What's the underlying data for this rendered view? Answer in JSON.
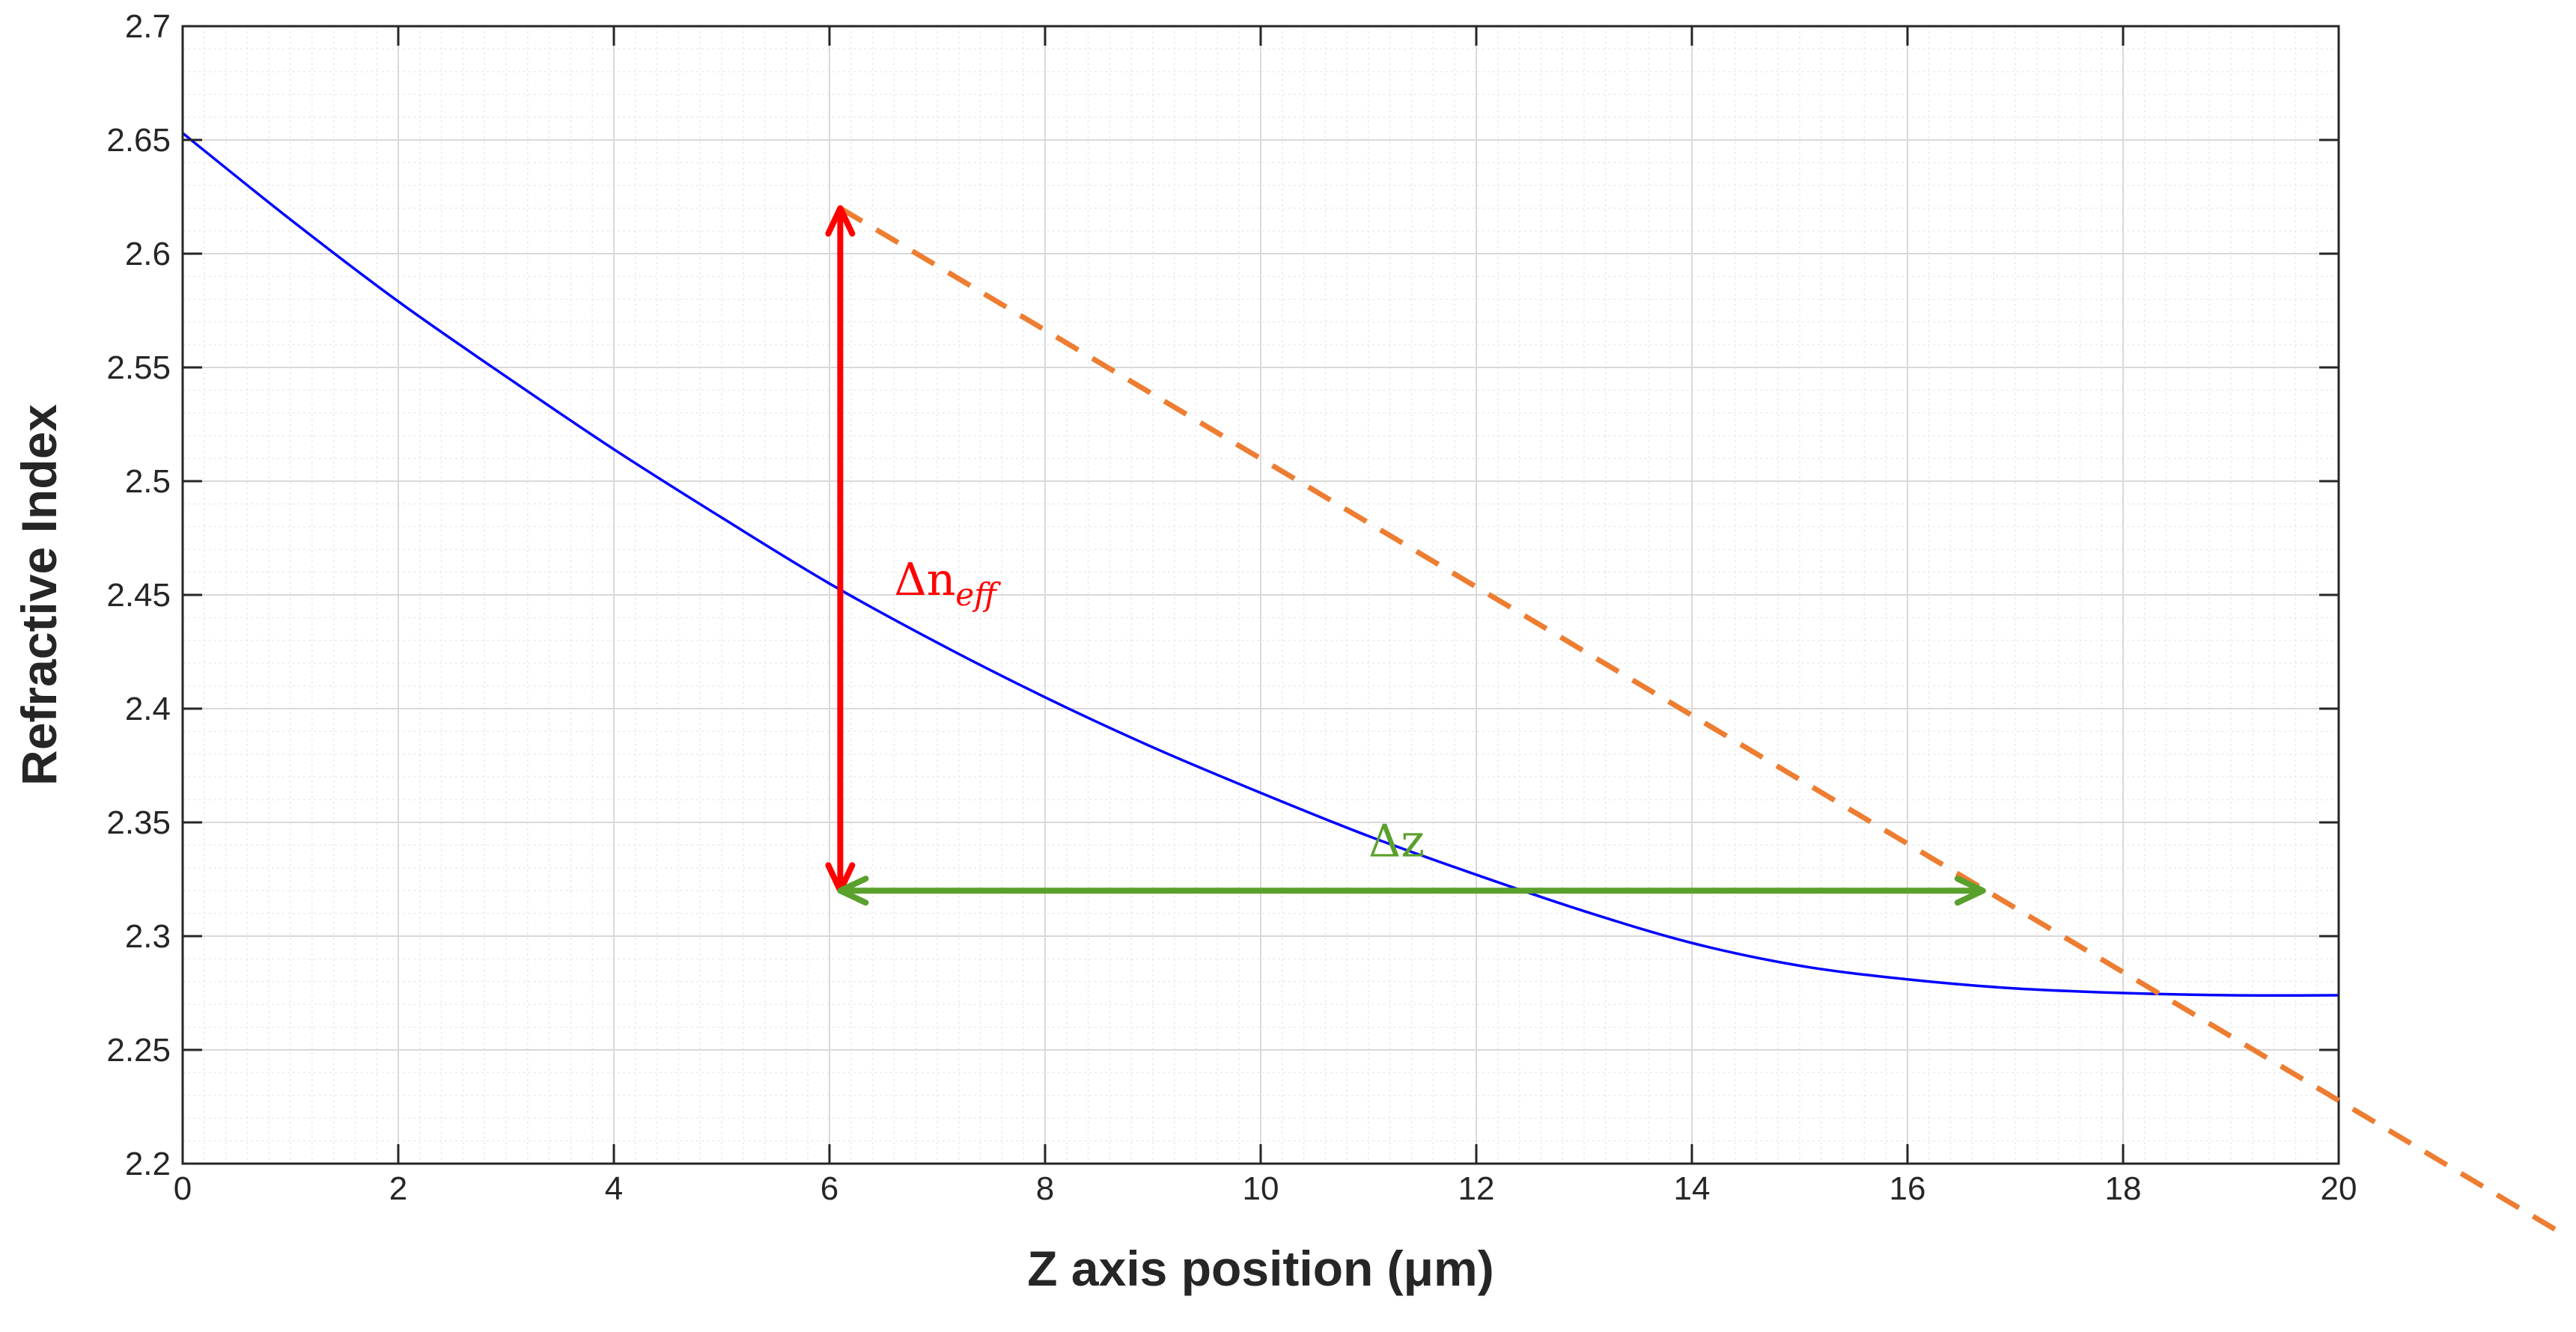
{
  "chart_data": {
    "type": "line",
    "title": "",
    "xlabel": "Z axis position (μm)",
    "ylabel": "Refractive Index",
    "xlim": [
      0,
      20
    ],
    "ylim": [
      2.2,
      2.7
    ],
    "xticks": [
      "0",
      "2",
      "4",
      "6",
      "8",
      "10",
      "12",
      "14",
      "16",
      "18",
      "20"
    ],
    "yticks": [
      "2.2",
      "2.25",
      "2.3",
      "2.35",
      "2.4",
      "2.45",
      "2.5",
      "2.55",
      "2.6",
      "2.65",
      "2.7"
    ],
    "grid": true,
    "minor_grid": true,
    "series": [
      {
        "color": "#0000ff",
        "x": [
          0,
          1,
          2,
          3,
          4,
          5,
          6,
          7,
          8,
          9,
          10,
          11,
          12,
          13,
          14,
          15,
          16,
          17,
          18,
          19,
          20
        ],
        "y": [
          2.653,
          2.615,
          2.579,
          2.546,
          2.514,
          2.484,
          2.455,
          2.429,
          2.405,
          2.383,
          2.363,
          2.344,
          2.327,
          2.311,
          2.297,
          2.287,
          2.281,
          2.277,
          2.275,
          2.274,
          2.274
        ]
      }
    ],
    "annotations": {
      "tangent": {
        "color": "#ed7d31",
        "style": "dashed",
        "x": [
          6.1,
          20
        ],
        "y": [
          2.62,
          2.229
        ]
      },
      "delta_n": {
        "color": "#ff0000",
        "x": 6.1,
        "y_from": 2.32,
        "y_to": 2.62,
        "label_main": "Δn",
        "label_sub": "eff",
        "label_x": 6.6,
        "label_y": 2.45
      },
      "delta_z": {
        "color": "#5aa02c",
        "y": 2.32,
        "x_from": 6.1,
        "x_to": 16.7,
        "label": "Δz",
        "label_x": 11.0,
        "label_y": 2.335
      }
    }
  }
}
